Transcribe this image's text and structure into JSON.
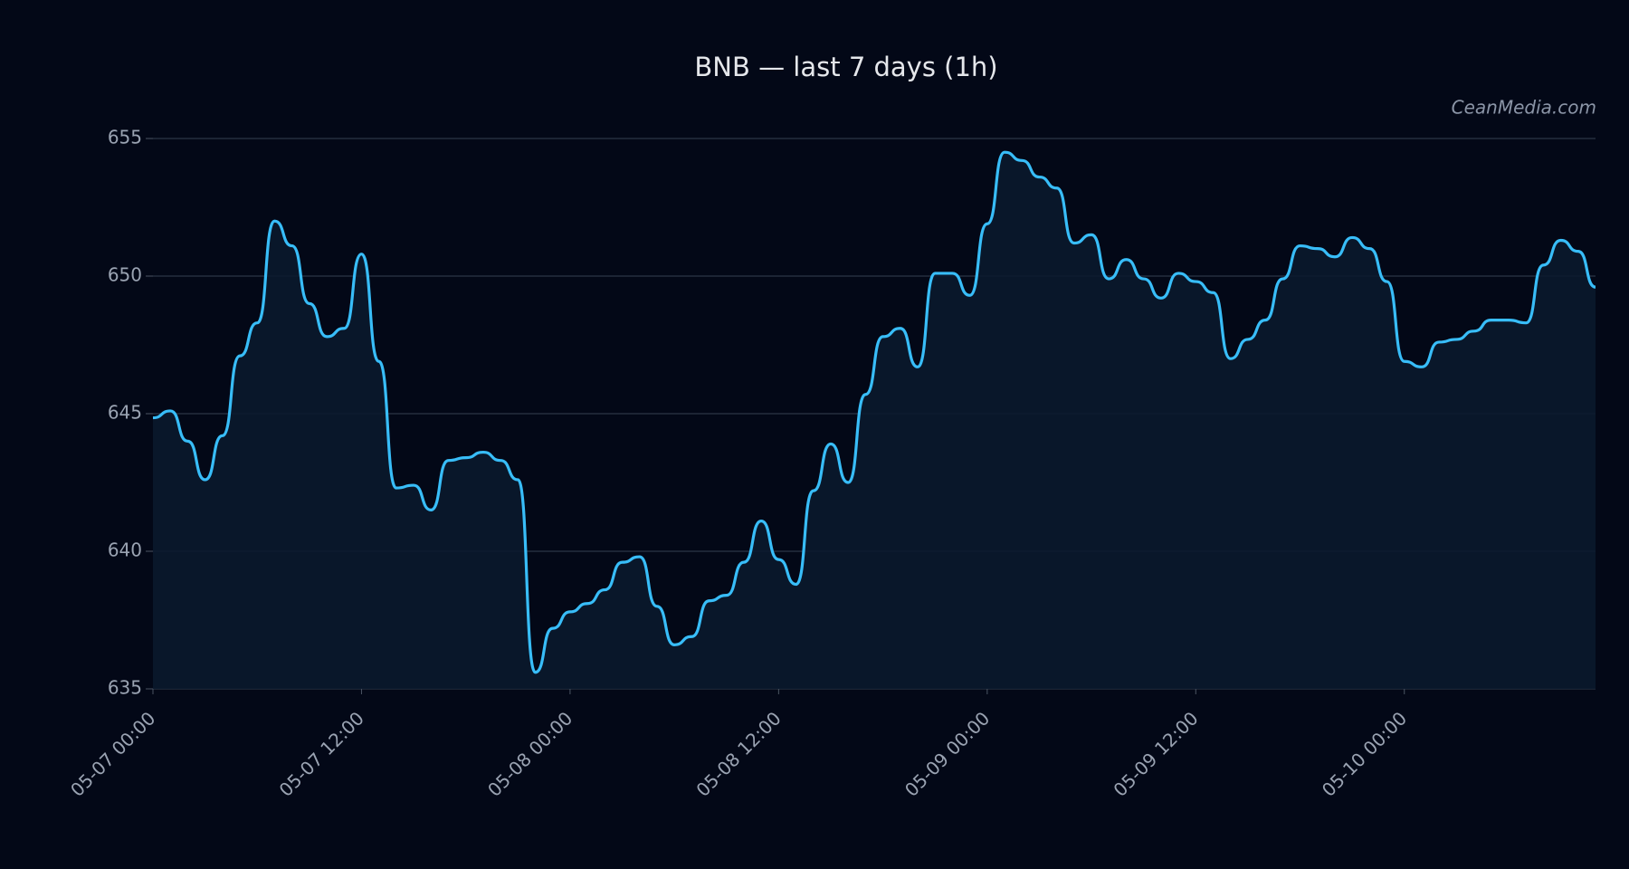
{
  "chart_data": {
    "type": "line",
    "title": "BNB — last 7 days (1h)",
    "watermark": "CeanMedia.com",
    "categories": [
      "05-07 00:00",
      null,
      null,
      null,
      null,
      null,
      null,
      null,
      null,
      null,
      null,
      null,
      "05-07 12:00",
      null,
      null,
      null,
      null,
      null,
      null,
      null,
      null,
      null,
      null,
      null,
      "05-08 00:00",
      null,
      null,
      null,
      null,
      null,
      null,
      null,
      null,
      null,
      null,
      null,
      "05-08 12:00",
      null,
      null,
      null,
      null,
      null,
      null,
      null,
      null,
      null,
      null,
      null,
      "05-09 00:00",
      null,
      null,
      null,
      null,
      null,
      null,
      null,
      null,
      null,
      null,
      null,
      "05-09 12:00",
      null,
      null,
      null,
      null,
      null,
      null,
      null,
      null,
      null,
      null,
      null,
      "05-10 00:00",
      null,
      null,
      null,
      null,
      null,
      null,
      null,
      null,
      null,
      null,
      null
    ],
    "values": [
      644.85,
      645.1,
      644.0,
      642.6,
      644.2,
      647.1,
      648.3,
      652.0,
      651.1,
      649.0,
      647.8,
      648.1,
      650.8,
      646.9,
      642.3,
      642.4,
      641.5,
      643.3,
      643.4,
      643.6,
      643.3,
      642.6,
      635.6,
      637.2,
      637.8,
      638.1,
      638.6,
      639.6,
      639.8,
      638.0,
      636.6,
      636.9,
      638.2,
      638.4,
      639.6,
      641.1,
      639.7,
      638.8,
      642.2,
      643.9,
      642.5,
      645.7,
      647.8,
      648.1,
      646.7,
      650.1,
      650.1,
      649.3,
      651.9,
      654.5,
      654.2,
      653.6,
      653.2,
      651.2,
      651.5,
      649.9,
      650.6,
      649.9,
      649.2,
      650.1,
      649.8,
      649.4,
      647.0,
      647.7,
      648.4,
      649.9,
      651.1,
      651.0,
      650.7,
      651.4,
      651.0,
      649.8,
      646.9,
      646.7,
      647.6,
      647.7,
      648.0,
      648.4,
      648.4,
      648.3,
      650.4,
      651.3,
      650.9,
      649.6
    ],
    "color": "#38bdf8",
    "ylim": [
      635,
      655
    ],
    "yticks": [
      635,
      640,
      645,
      650,
      655
    ],
    "grid": true
  }
}
